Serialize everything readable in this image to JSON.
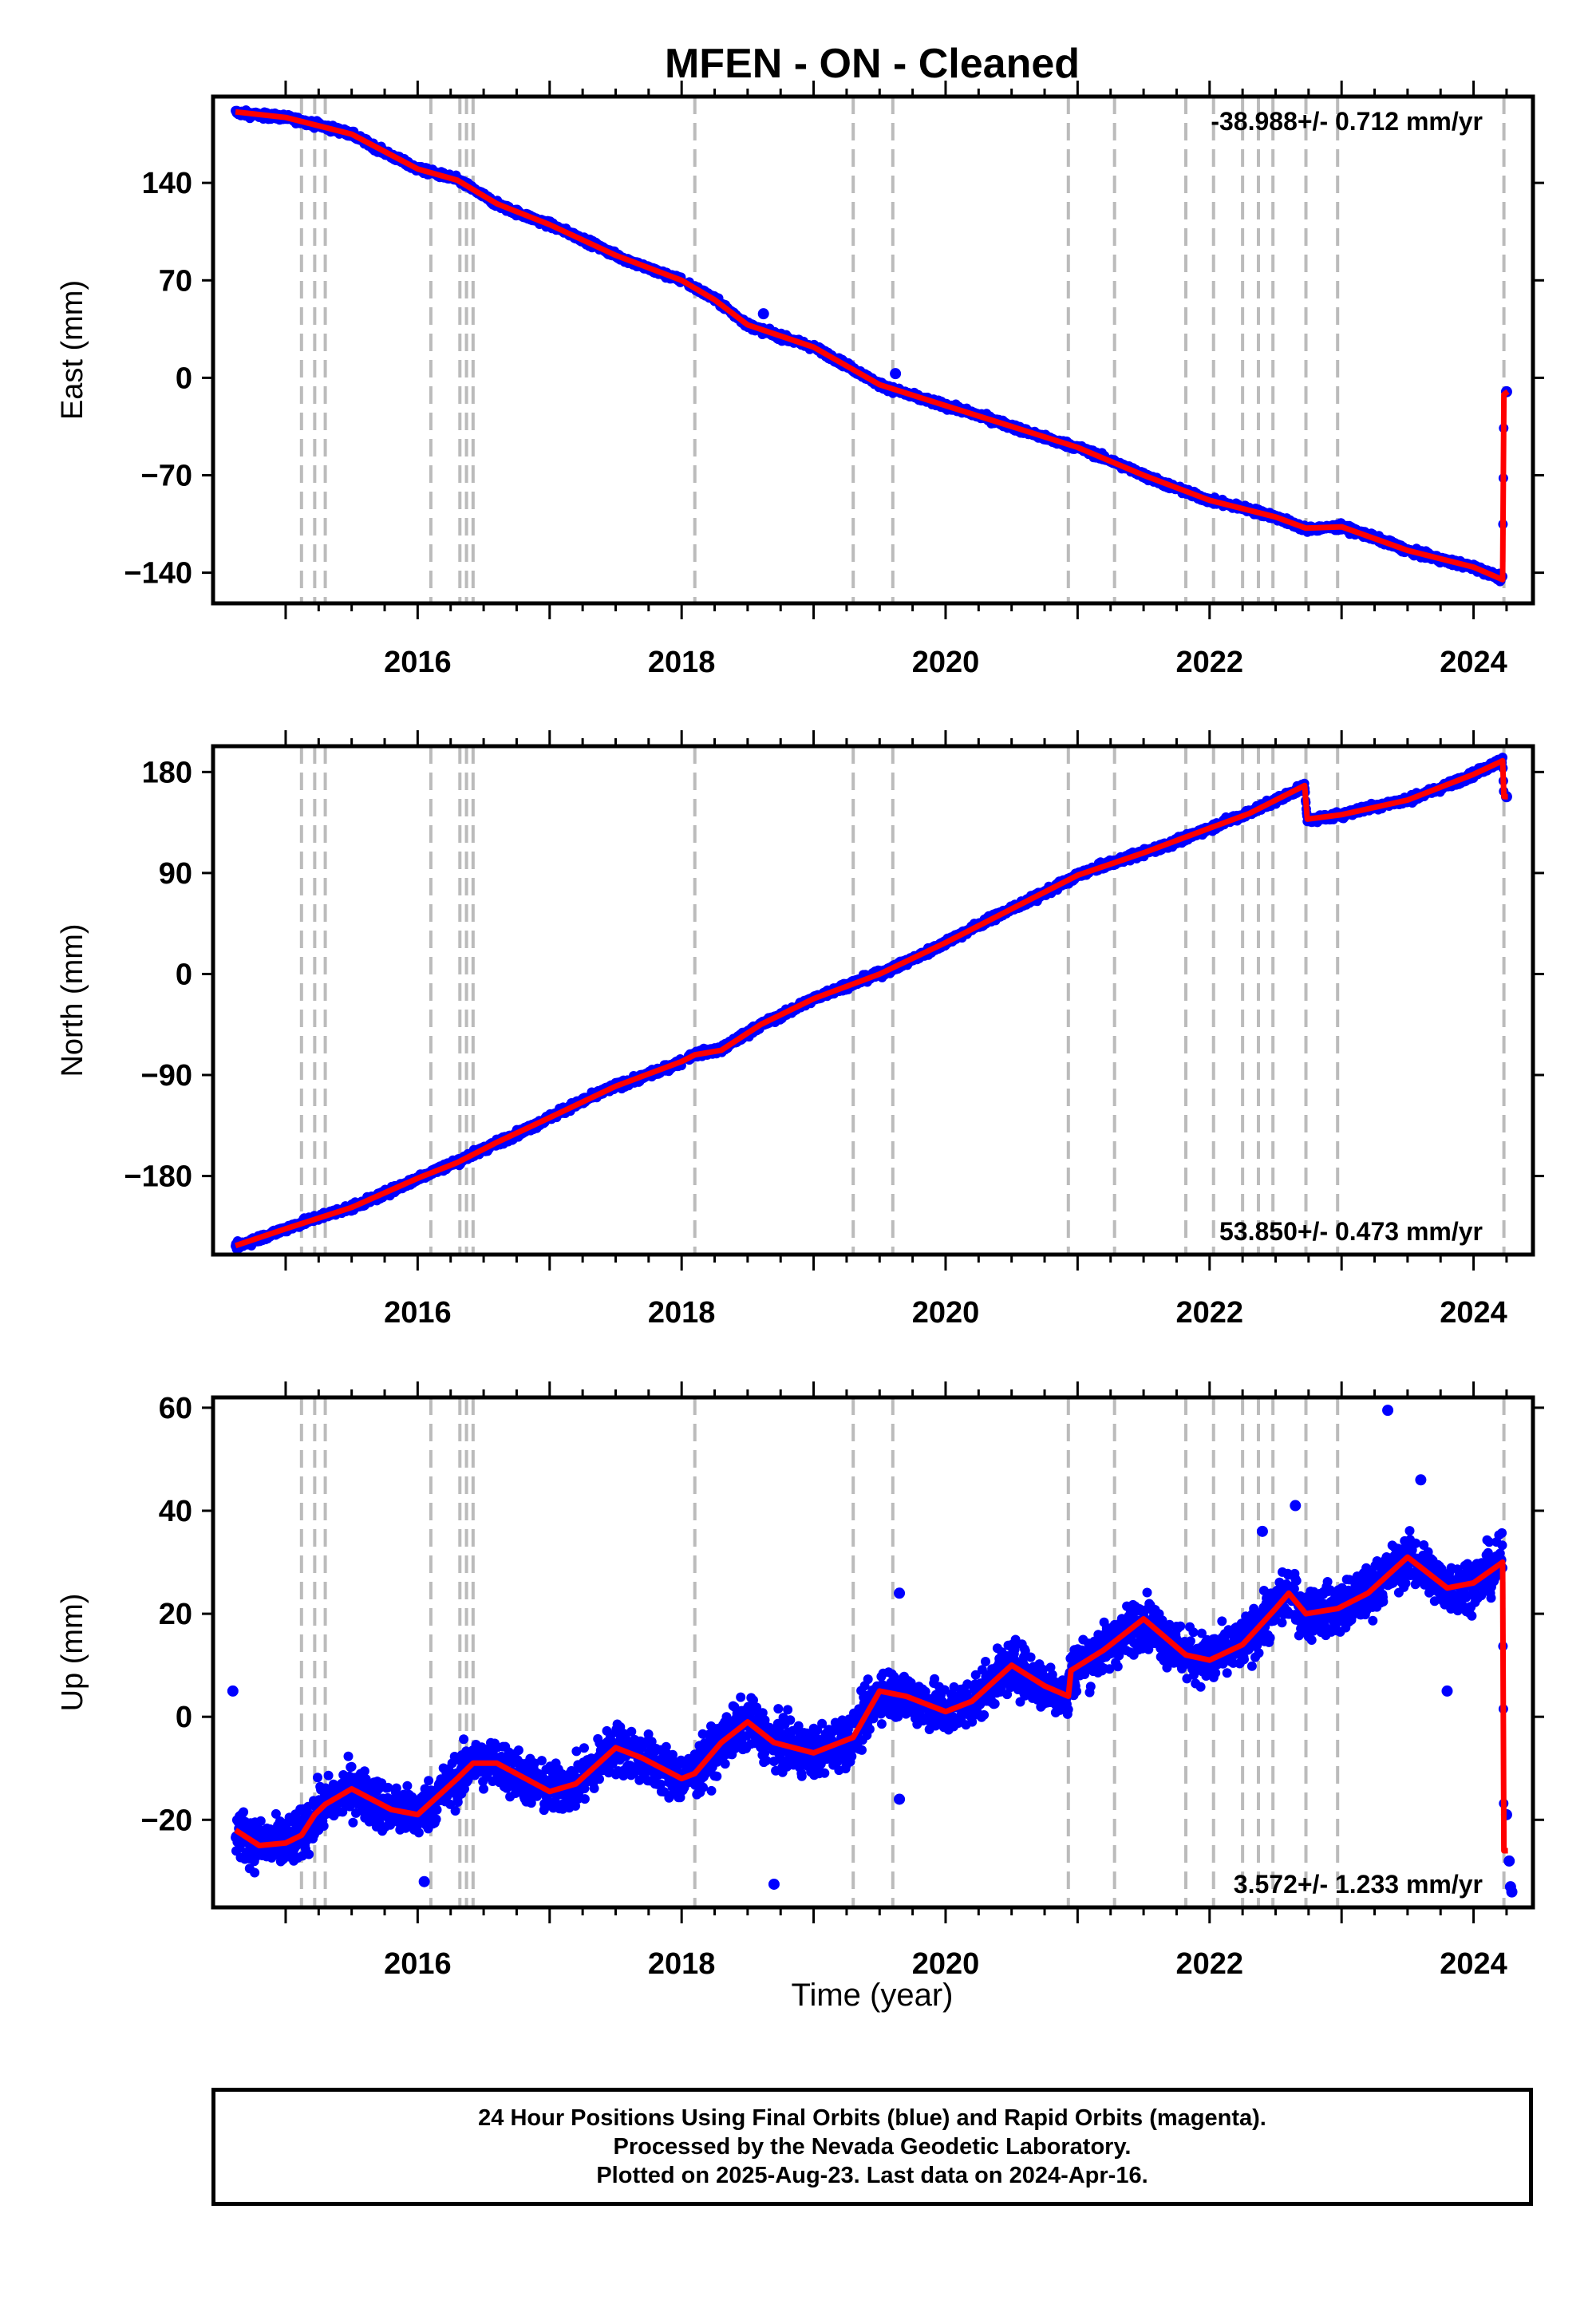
{
  "title": "MFEN  - ON - Cleaned",
  "xlabel": "Time (year)",
  "colors": {
    "data": "#0000ff",
    "model": "#ff0000",
    "breaks": "#bbbbbb",
    "frame": "#000000"
  },
  "chart_data": [
    {
      "id": "east",
      "type": "scatter",
      "ylabel": "East (mm)",
      "xlim": [
        2014.45,
        2024.45
      ],
      "ylim": [
        -162,
        202
      ],
      "xticks": [
        2016,
        2018,
        2020,
        2022,
        2024
      ],
      "yticks": [
        140,
        70,
        0,
        -70,
        -140
      ],
      "ytick_labels": [
        "140",
        "70",
        "0",
        "−70",
        "−140"
      ],
      "rate_label": "-38.988+/- 0.712 mm/yr",
      "rate_position": "top-right",
      "grid": false,
      "seasonal_amplitude": 0.5,
      "noise": 1.6,
      "model": [
        [
          2014.62,
          191
        ],
        [
          2015.0,
          187
        ],
        [
          2015.5,
          175
        ],
        [
          2016.0,
          150
        ],
        [
          2016.3,
          142
        ],
        [
          2016.6,
          125
        ],
        [
          2017.0,
          110
        ],
        [
          2017.5,
          88
        ],
        [
          2018.0,
          70
        ],
        [
          2018.25,
          56
        ],
        [
          2018.5,
          38
        ],
        [
          2019.0,
          22
        ],
        [
          2019.5,
          -5
        ],
        [
          2020.0,
          -20
        ],
        [
          2020.5,
          -35
        ],
        [
          2021.0,
          -50
        ],
        [
          2021.5,
          -70
        ],
        [
          2022.0,
          -88
        ],
        [
          2022.5,
          -100
        ],
        [
          2022.73,
          -108
        ],
        [
          2023.0,
          -107
        ],
        [
          2023.5,
          -124
        ],
        [
          2024.0,
          -136
        ],
        [
          2024.22,
          -145
        ],
        [
          2024.23,
          -12
        ],
        [
          2024.26,
          -10
        ]
      ],
      "breaks": [
        2015.12,
        2015.22,
        2015.3,
        2016.1,
        2016.32,
        2016.37,
        2016.42,
        2018.1,
        2019.3,
        2019.6,
        2020.93,
        2021.28,
        2021.82,
        2022.03,
        2022.25,
        2022.37,
        2022.48,
        2022.73,
        2022.97,
        2024.23
      ],
      "outliers": [
        [
          2018.62,
          46
        ],
        [
          2019.62,
          3
        ],
        [
          2024.25,
          -10
        ]
      ]
    },
    {
      "id": "north",
      "type": "scatter",
      "ylabel": "North (mm)",
      "xlim": [
        2014.45,
        2024.45
      ],
      "ylim": [
        -250,
        203
      ],
      "xticks": [
        2016,
        2018,
        2020,
        2022,
        2024
      ],
      "yticks": [
        180,
        90,
        0,
        -90,
        -180
      ],
      "ytick_labels": [
        "180",
        "90",
        "0",
        "−90",
        "−180"
      ],
      "rate_label": "53.850+/- 0.473 mm/yr",
      "rate_position": "bottom-right",
      "grid": false,
      "seasonal_amplitude": 0.8,
      "noise": 2.2,
      "model": [
        [
          2014.62,
          -242
        ],
        [
          2015.0,
          -227
        ],
        [
          2015.5,
          -208
        ],
        [
          2016.0,
          -182
        ],
        [
          2016.3,
          -168
        ],
        [
          2016.6,
          -150
        ],
        [
          2017.0,
          -128
        ],
        [
          2017.5,
          -100
        ],
        [
          2018.0,
          -78
        ],
        [
          2018.1,
          -72
        ],
        [
          2018.3,
          -68
        ],
        [
          2018.6,
          -45
        ],
        [
          2019.0,
          -22
        ],
        [
          2019.5,
          0
        ],
        [
          2020.0,
          28
        ],
        [
          2020.5,
          58
        ],
        [
          2021.0,
          88
        ],
        [
          2021.5,
          108
        ],
        [
          2022.0,
          130
        ],
        [
          2022.3,
          143
        ],
        [
          2022.72,
          168
        ],
        [
          2022.74,
          138
        ],
        [
          2023.0,
          142
        ],
        [
          2023.5,
          155
        ],
        [
          2024.0,
          178
        ],
        [
          2024.22,
          190
        ],
        [
          2024.23,
          158
        ],
        [
          2024.26,
          158
        ]
      ],
      "breaks": [
        2015.12,
        2015.22,
        2015.3,
        2016.1,
        2016.32,
        2016.37,
        2016.42,
        2018.1,
        2019.3,
        2019.6,
        2020.93,
        2021.28,
        2021.82,
        2022.03,
        2022.25,
        2022.37,
        2022.48,
        2022.73,
        2022.97,
        2024.23
      ],
      "outliers": [
        [
          2024.25,
          158
        ]
      ]
    },
    {
      "id": "up",
      "type": "scatter",
      "ylabel": "Up (mm)",
      "xlim": [
        2014.45,
        2024.45
      ],
      "ylim": [
        -37,
        62
      ],
      "xticks": [
        2016,
        2018,
        2020,
        2022,
        2024
      ],
      "yticks": [
        60,
        40,
        20,
        0,
        -20
      ],
      "ytick_labels": [
        "60",
        "40",
        "20",
        "0",
        "−20"
      ],
      "rate_label": "3.572+/- 1.233 mm/yr",
      "rate_position": "bottom-right",
      "grid": false,
      "seasonal_amplitude": 0,
      "noise": 3.4,
      "model": [
        [
          2014.62,
          -22
        ],
        [
          2014.8,
          -25
        ],
        [
          2015.0,
          -24.5
        ],
        [
          2015.12,
          -23
        ],
        [
          2015.22,
          -19
        ],
        [
          2015.3,
          -17
        ],
        [
          2015.5,
          -14
        ],
        [
          2015.8,
          -18
        ],
        [
          2016.0,
          -19
        ],
        [
          2016.3,
          -12
        ],
        [
          2016.42,
          -9
        ],
        [
          2016.6,
          -9
        ],
        [
          2017.0,
          -14.5
        ],
        [
          2017.2,
          -13
        ],
        [
          2017.5,
          -6
        ],
        [
          2017.7,
          -8
        ],
        [
          2018.0,
          -12
        ],
        [
          2018.1,
          -11
        ],
        [
          2018.3,
          -5
        ],
        [
          2018.5,
          -1
        ],
        [
          2018.7,
          -5
        ],
        [
          2019.0,
          -7
        ],
        [
          2019.3,
          -4
        ],
        [
          2019.5,
          5
        ],
        [
          2019.7,
          4
        ],
        [
          2020.0,
          1
        ],
        [
          2020.2,
          3
        ],
        [
          2020.5,
          10
        ],
        [
          2020.75,
          6
        ],
        [
          2020.93,
          4
        ],
        [
          2020.95,
          9
        ],
        [
          2021.2,
          13
        ],
        [
          2021.5,
          19
        ],
        [
          2021.82,
          12
        ],
        [
          2022.0,
          11
        ],
        [
          2022.25,
          14
        ],
        [
          2022.5,
          21
        ],
        [
          2022.6,
          24
        ],
        [
          2022.73,
          20
        ],
        [
          2022.97,
          21
        ],
        [
          2023.2,
          24
        ],
        [
          2023.5,
          31
        ],
        [
          2023.8,
          25
        ],
        [
          2024.0,
          26
        ],
        [
          2024.22,
          30
        ],
        [
          2024.23,
          -26
        ],
        [
          2024.26,
          -26
        ]
      ],
      "breaks": [
        2015.12,
        2015.22,
        2015.3,
        2016.1,
        2016.32,
        2016.37,
        2016.42,
        2018.1,
        2019.3,
        2019.6,
        2020.93,
        2021.28,
        2021.82,
        2022.03,
        2022.25,
        2022.37,
        2022.48,
        2022.73,
        2022.97,
        2024.23
      ],
      "outliers": [
        [
          2014.6,
          5
        ],
        [
          2016.05,
          -32
        ],
        [
          2018.7,
          -32.5
        ],
        [
          2019.65,
          24
        ],
        [
          2019.65,
          -16
        ],
        [
          2022.65,
          41
        ],
        [
          2023.35,
          59.5
        ],
        [
          2023.6,
          46
        ],
        [
          2023.8,
          5
        ],
        [
          2022.4,
          36
        ],
        [
          2024.25,
          -19
        ],
        [
          2024.27,
          -28
        ],
        [
          2024.28,
          -33
        ],
        [
          2024.29,
          -34
        ]
      ]
    }
  ],
  "footer": {
    "line1": "24 Hour Positions Using Final Orbits (blue) and Rapid Orbits (magenta).",
    "line2": "Processed by the Nevada Geodetic Laboratory.",
    "line3": "Plotted on 2025-Aug-23. Last data on 2024-Apr-16."
  }
}
